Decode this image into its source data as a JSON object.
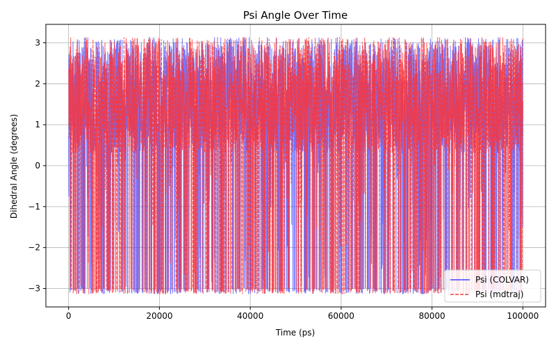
{
  "chart_data": {
    "type": "line",
    "title": "Psi Angle Over Time",
    "xlabel": "Time (ps)",
    "ylabel": "Dihedral Angle (degrees)",
    "xlim": [
      -5000,
      105000
    ],
    "ylim": [
      -3.45,
      3.45
    ],
    "xticks": [
      0,
      20000,
      40000,
      60000,
      80000,
      100000
    ],
    "yticks": [
      -3,
      -2,
      -1,
      0,
      1,
      2,
      3
    ],
    "grid": true,
    "legend_position": "bottom-right",
    "series": [
      {
        "name": "Psi (COLVAR)",
        "color": "#4444ff",
        "linestyle": "solid",
        "x_range": [
          0,
          100000
        ],
        "y_range": [
          -3.14,
          3.14
        ],
        "dominant_band": [
          0.3,
          3.14
        ],
        "note": "dense psi time series fluctuating between about -3.14 and 3.14, mostly between 0.3 and 3.14"
      },
      {
        "name": "Psi (mdtraj)",
        "color": "#ff3333",
        "linestyle": "dashed",
        "x_range": [
          0,
          100000
        ],
        "y_range": [
          -3.14,
          3.14
        ],
        "dominant_band": [
          0.3,
          3.14
        ],
        "note": "overlaps COLVAR series almost exactly"
      }
    ]
  }
}
